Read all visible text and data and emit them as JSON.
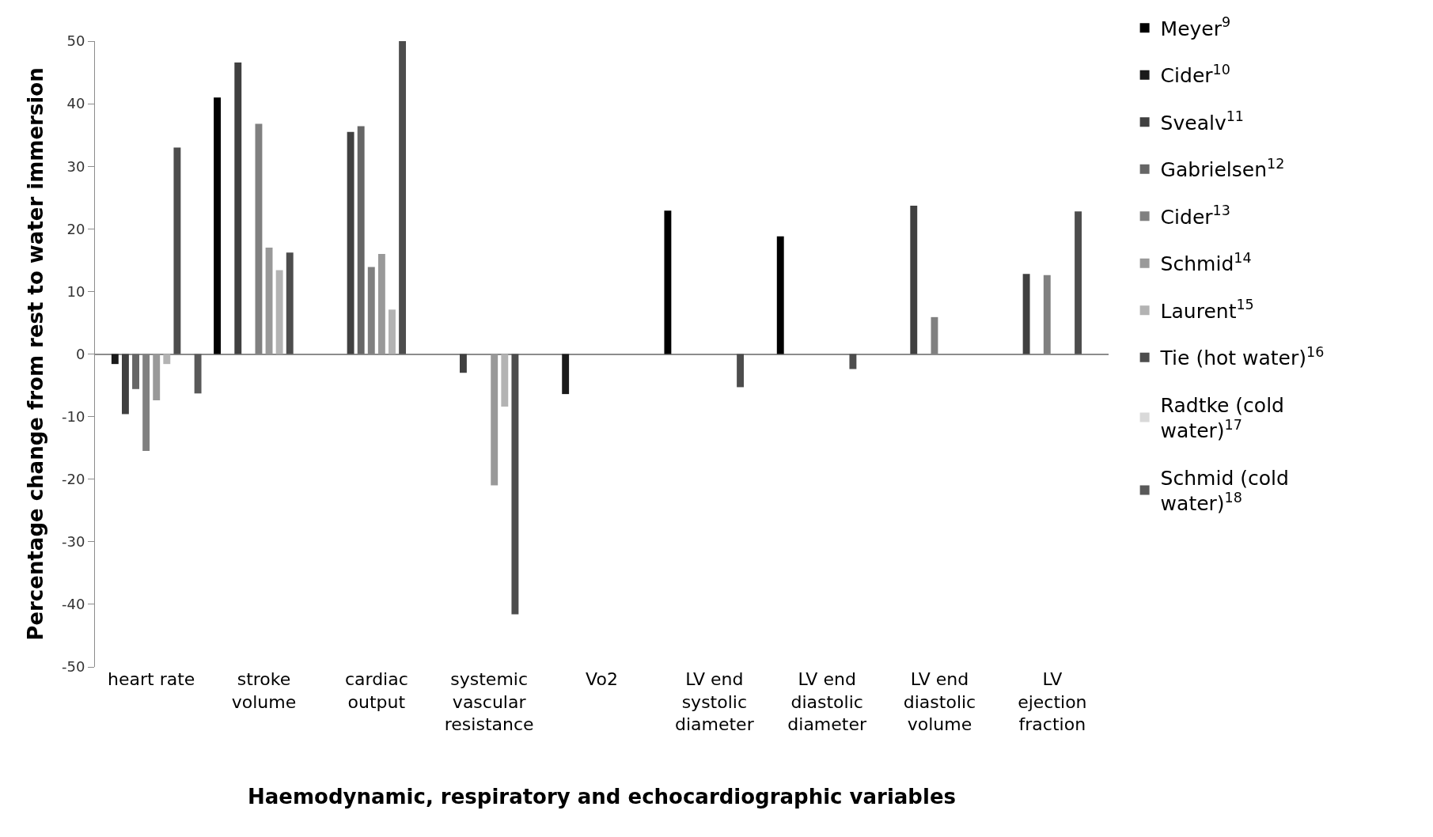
{
  "chart_data": {
    "type": "bar",
    "xlabel": "Haemodynamic, respiratory and echocardiographic variables",
    "ylabel": "Percentage change from rest to water immersion",
    "categories": [
      "heart rate",
      "stroke volume",
      "cardiac output",
      "systemic vascular resistance",
      "Vo2",
      "LV end systolic diameter",
      "LV end diastolic diameter",
      "LV end diastolic volume",
      "LV ejection fraction"
    ],
    "series": [
      {
        "name": "Meyer$^{9}$",
        "color": "#000000",
        "values": [
          null,
          41.0,
          null,
          null,
          null,
          22.9,
          18.8,
          null,
          null
        ]
      },
      {
        "name": "Cider$^{10}$",
        "color": "#1a1a1a",
        "values": [
          -1.6,
          null,
          null,
          null,
          -6.4,
          null,
          null,
          null,
          null
        ]
      },
      {
        "name": "Svealv$^{11}$",
        "color": "#404040",
        "values": [
          -9.6,
          46.6,
          35.5,
          -3.0,
          null,
          null,
          null,
          23.7,
          12.8
        ]
      },
      {
        "name": "Gabrielsen$^{12}$",
        "color": "#666666",
        "values": [
          -5.6,
          null,
          36.4,
          null,
          null,
          null,
          null,
          null,
          null
        ]
      },
      {
        "name": "Cider$^{13}$",
        "color": "#808080",
        "values": [
          -15.5,
          36.8,
          13.9,
          null,
          null,
          null,
          null,
          5.9,
          12.6
        ]
      },
      {
        "name": "Schmid$^{14}$",
        "color": "#999999",
        "values": [
          -7.4,
          17.0,
          16.0,
          -21.0,
          null,
          null,
          null,
          null,
          null
        ]
      },
      {
        "name": "Laurent$^{15}$",
        "color": "#b3b3b3",
        "values": [
          -1.6,
          13.4,
          7.1,
          -8.4,
          null,
          null,
          null,
          null,
          null
        ]
      },
      {
        "name": "Tie (hot water)$^{16}$",
        "color": "#4d4d4d",
        "values": [
          33.0,
          16.2,
          50.0,
          -41.6,
          null,
          -5.3,
          -2.4,
          null,
          22.8
        ]
      },
      {
        "name": "Radtke (cold water)$^{17}$",
        "color": "#d9d9d9",
        "values": [
          null,
          null,
          null,
          null,
          null,
          null,
          null,
          null,
          null
        ]
      },
      {
        "name": "Schmid (cold water)$^{18}$",
        "color": "#595959",
        "values": [
          -6.3,
          null,
          null,
          null,
          null,
          null,
          null,
          null,
          null
        ]
      }
    ],
    "ylim": [
      -50,
      50
    ],
    "yticks": [
      -50,
      -40,
      -30,
      -20,
      -10,
      0,
      10,
      20,
      30,
      40,
      50
    ],
    "legend": "right"
  }
}
